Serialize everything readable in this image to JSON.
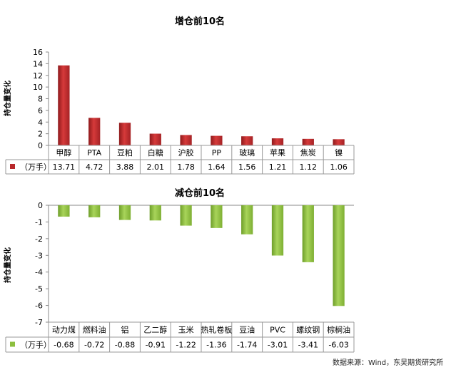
{
  "chart_data": [
    {
      "type": "bar",
      "title": "增仓前10名",
      "ylabel": "持仓量变化",
      "ylim": [
        0,
        16
      ],
      "yticks": [
        0,
        2,
        4,
        6,
        8,
        10,
        12,
        14,
        16
      ],
      "grid": false,
      "categories": [
        "甲醇",
        "PTA",
        "豆粕",
        "白糖",
        "沪胶",
        "PP",
        "玻璃",
        "苹果",
        "焦炭",
        "镍"
      ],
      "series": [
        {
          "name": "（万手）",
          "values": [
            13.71,
            4.72,
            3.88,
            2.01,
            1.78,
            1.64,
            1.56,
            1.21,
            1.12,
            1.06
          ]
        }
      ],
      "legend": "data-table",
      "color": "#b8282b"
    },
    {
      "type": "bar",
      "title": "减仓前10名",
      "ylabel": "持仓量变化",
      "ylim": [
        -7,
        0
      ],
      "yticks": [
        0,
        -1,
        -2,
        -3,
        -4,
        -5,
        -6,
        -7
      ],
      "grid": false,
      "categories": [
        "动力煤",
        "燃料油",
        "铝",
        "乙二醇",
        "玉米",
        "热轧卷板",
        "豆油",
        "PVC",
        "螺纹钢",
        "棕榈油"
      ],
      "series": [
        {
          "name": "（万手）",
          "values": [
            -0.68,
            -0.72,
            -0.88,
            -0.91,
            -1.22,
            -1.36,
            -1.74,
            -3.01,
            -3.41,
            -6.03
          ]
        }
      ],
      "legend": "data-table",
      "color": "#8dbf3f"
    }
  ],
  "source": "数据来源：Wind，东吴期货研究所"
}
